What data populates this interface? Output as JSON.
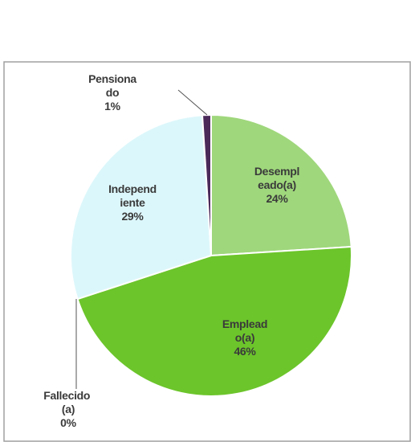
{
  "chart_data": {
    "type": "pie",
    "categories": [
      "Desempleado(a)",
      "Empleado(a)",
      "Fallecido (a)",
      "Independiente",
      "Pensionado"
    ],
    "values": [
      24,
      46,
      0,
      29,
      1
    ],
    "value_labels": [
      "24%",
      "46%",
      "0%",
      "29%",
      "1%"
    ],
    "colors": [
      "#9fd77c",
      "#6cc52b",
      "#3a3a3a",
      "#dcf7fb",
      "#4b2a5a"
    ]
  }
}
